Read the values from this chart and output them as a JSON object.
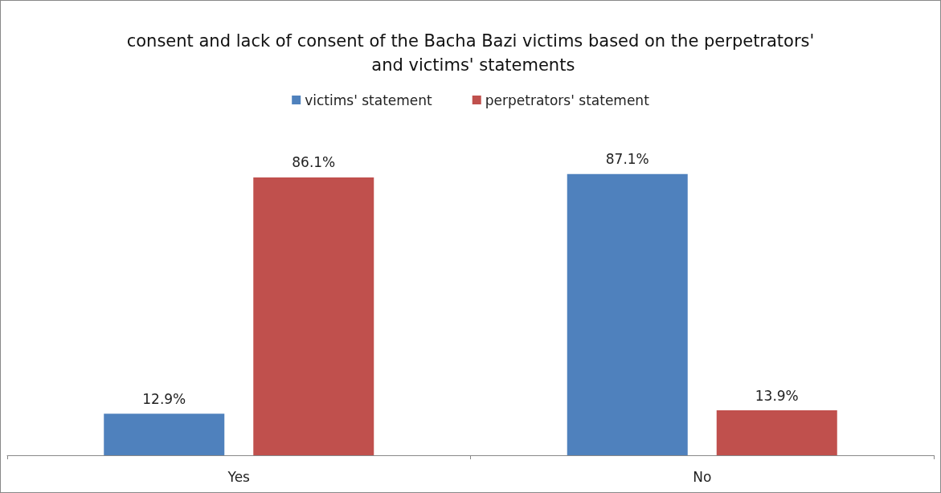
{
  "chart_data": {
    "type": "bar",
    "title": "consent and lack of consent of the Bacha Bazi victims based on the perpetrators' and victims' statements",
    "categories": [
      "Yes",
      "No"
    ],
    "series": [
      {
        "name": "victims' statement",
        "color": "#4f81bd",
        "values": [
          12.9,
          87.1
        ],
        "value_labels": [
          "12.9%",
          "87.1%"
        ]
      },
      {
        "name": "perpetrators' statement",
        "color": "#c0504d",
        "values": [
          86.1,
          13.9
        ],
        "value_labels": [
          "86.1%",
          "13.9%"
        ]
      }
    ],
    "legend": "top"
  }
}
